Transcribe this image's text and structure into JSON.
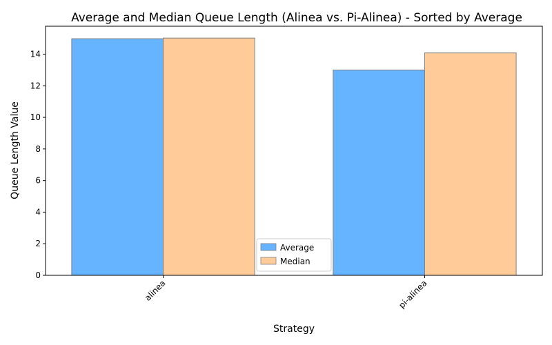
{
  "chart_data": {
    "type": "bar",
    "title": "Average and Median Queue Length (Alinea vs. Pi-Alinea) - Sorted by Average",
    "xlabel": "Strategy",
    "ylabel": "Queue Length Value",
    "categories": [
      "alinea",
      "pi-alinea"
    ],
    "series": [
      {
        "name": "Average",
        "values": [
          14.98,
          13.0
        ],
        "color": "#66b3ff"
      },
      {
        "name": "Median",
        "values": [
          15.02,
          14.08
        ],
        "color": "#ffcc99"
      }
    ],
    "ylim": [
      0,
      15.77
    ],
    "yticks": [
      0,
      2,
      4,
      6,
      8,
      10,
      12,
      14
    ],
    "grid": false,
    "legend_position": "bottom-center",
    "bar_edge_color": "#808080"
  }
}
